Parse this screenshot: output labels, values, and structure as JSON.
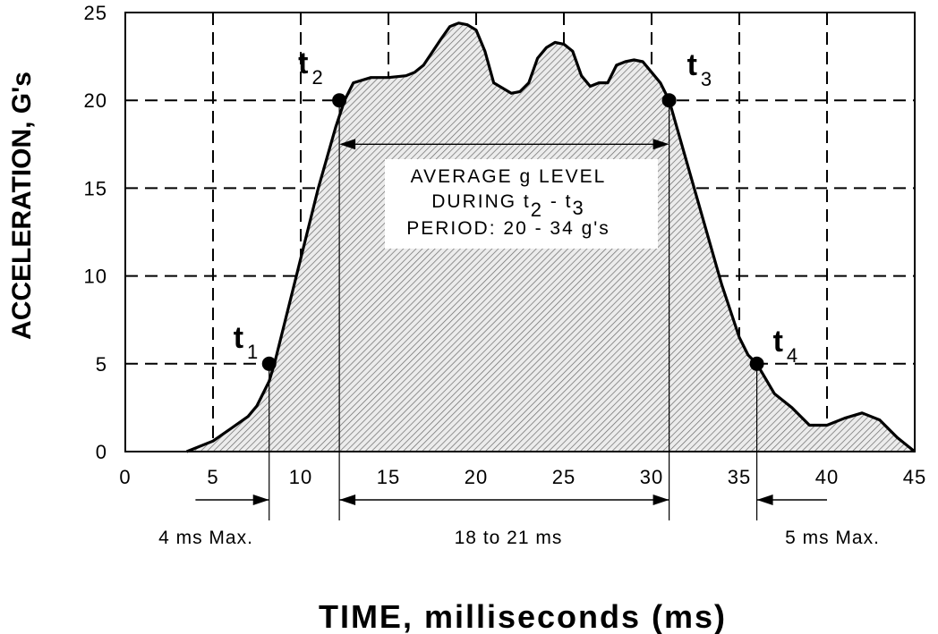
{
  "chart_data": {
    "type": "area",
    "xlabel": "TIME, milliseconds (ms)",
    "ylabel": "ACCELERATION, G's",
    "xlim": [
      0,
      45
    ],
    "ylim": [
      0,
      25
    ],
    "x_ticks": [
      0,
      5,
      10,
      15,
      20,
      25,
      30,
      35,
      40,
      45
    ],
    "y_ticks": [
      0,
      5,
      10,
      15,
      20,
      25
    ],
    "grid": "dashed",
    "series": [
      {
        "x": [
          3.5,
          5,
          6,
          7,
          7.5,
          8.2,
          8.5,
          9,
          10,
          11,
          12,
          12.5,
          13,
          14,
          15,
          16,
          16.5,
          17,
          18,
          18.5,
          19,
          19.5,
          20,
          20.5,
          21,
          22,
          22.5,
          23,
          23.5,
          24,
          24.5,
          25,
          25.5,
          26,
          26.5,
          27,
          27.5,
          28,
          28.5,
          29,
          29.5,
          30,
          30.5,
          31,
          32,
          33,
          34,
          35,
          35.5,
          36,
          37,
          38,
          39,
          40,
          41,
          42,
          43,
          44,
          45
        ],
        "y": [
          0,
          0.6,
          1.3,
          2.0,
          2.6,
          4.0,
          5.0,
          7.0,
          11.0,
          15.0,
          18.5,
          20.0,
          21.0,
          21.3,
          21.3,
          21.4,
          21.6,
          22.0,
          23.5,
          24.2,
          24.4,
          24.3,
          24.0,
          22.8,
          21.0,
          20.4,
          20.5,
          21.0,
          22.4,
          23.0,
          23.3,
          23.2,
          22.8,
          21.4,
          20.8,
          21.0,
          21.0,
          22.0,
          22.2,
          22.3,
          22.2,
          21.6,
          21.0,
          20.0,
          16.5,
          13.0,
          9.5,
          6.5,
          5.5,
          5.0,
          3.3,
          2.5,
          1.5,
          1.5,
          1.9,
          2.2,
          1.8,
          0.8,
          0.0
        ]
      }
    ],
    "points": [
      {
        "main": "t",
        "sub": "1",
        "x": 8.2,
        "y": 5
      },
      {
        "main": "t",
        "sub": "2",
        "x": 12.2,
        "y": 20
      },
      {
        "main": "t",
        "sub": "3",
        "x": 31.0,
        "y": 20
      },
      {
        "main": "t",
        "sub": "4",
        "x": 36.0,
        "y": 5
      }
    ],
    "annotation": {
      "line1": "AVERAGE g LEVEL",
      "line2_a": "DURING  t",
      "line2_sub2": "2",
      "line2_b": " -  t",
      "line2_sub3": "3",
      "line3": "PERIOD:  20 - 34 g's"
    },
    "spans": [
      {
        "label": "4 ms Max.",
        "marker_x": 8.2,
        "direction": "in-from-left",
        "from_x": 4.0
      },
      {
        "label": "18 to 21 ms",
        "start_x": 12.2,
        "end_x": 31.0,
        "direction": "both"
      },
      {
        "label": "5 ms Max.",
        "marker_x": 36.0,
        "direction": "in-from-right",
        "from_x": 40.0
      }
    ]
  }
}
